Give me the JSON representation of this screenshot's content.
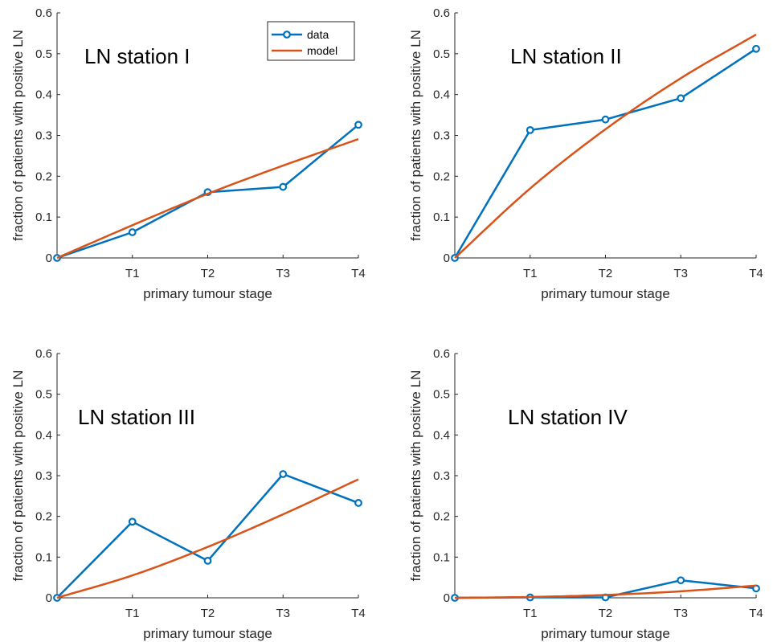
{
  "colors": {
    "data": "#0072BD",
    "model": "#D95319",
    "axis": "#262626"
  },
  "legend": {
    "data_label": "data",
    "model_label": "model",
    "placement": "top-right of first panel"
  },
  "chart_data": [
    {
      "type": "line",
      "title": "LN station I",
      "xlabel": "primary tumour stage",
      "ylabel": "fraction of patients with positive LN",
      "x_ticks": [
        "T1",
        "T2",
        "T3",
        "T4"
      ],
      "y_ticks": [
        "0",
        "0.1",
        "0.2",
        "0.3",
        "0.4",
        "0.5",
        "0.6"
      ],
      "xlim": [
        0,
        4
      ],
      "ylim": [
        0,
        0.6
      ],
      "series": [
        {
          "name": "data",
          "marker": "circle",
          "x": [
            0,
            1,
            2,
            3,
            4
          ],
          "y": [
            0,
            0.063,
            0.161,
            0.174,
            0.326
          ]
        },
        {
          "name": "model",
          "marker": "none",
          "x": [
            0,
            1,
            2,
            3,
            4
          ],
          "y": [
            0,
            0.08,
            0.157,
            0.226,
            0.291
          ]
        }
      ]
    },
    {
      "type": "line",
      "title": "LN station II",
      "xlabel": "primary tumour stage",
      "ylabel": "fraction of patients with positive LN",
      "x_ticks": [
        "T1",
        "T2",
        "T3",
        "T4"
      ],
      "y_ticks": [
        "0",
        "0.1",
        "0.2",
        "0.3",
        "0.4",
        "0.5",
        "0.6"
      ],
      "xlim": [
        0,
        4
      ],
      "ylim": [
        0,
        0.6
      ],
      "series": [
        {
          "name": "data",
          "marker": "circle",
          "x": [
            0,
            1,
            2,
            3,
            4
          ],
          "y": [
            0,
            0.313,
            0.339,
            0.391,
            0.512
          ]
        },
        {
          "name": "model",
          "marker": "none",
          "x": [
            0,
            1,
            2,
            3,
            4
          ],
          "y": [
            0,
            0.17,
            0.315,
            0.44,
            0.547
          ]
        }
      ]
    },
    {
      "type": "line",
      "title": "LN station III",
      "xlabel": "primary tumour stage",
      "ylabel": "fraction of patients with positive LN",
      "x_ticks": [
        "T1",
        "T2",
        "T3",
        "T4"
      ],
      "y_ticks": [
        "0",
        "0.1",
        "0.2",
        "0.3",
        "0.4",
        "0.5",
        "0.6"
      ],
      "xlim": [
        0,
        4
      ],
      "ylim": [
        0,
        0.6
      ],
      "series": [
        {
          "name": "data",
          "marker": "circle",
          "x": [
            0,
            1,
            2,
            3,
            4
          ],
          "y": [
            0,
            0.187,
            0.091,
            0.304,
            0.233
          ]
        },
        {
          "name": "model",
          "marker": "none",
          "x": [
            0,
            1,
            2,
            3,
            4
          ],
          "y": [
            0,
            0.055,
            0.125,
            0.205,
            0.291
          ]
        }
      ]
    },
    {
      "type": "line",
      "title": "LN station IV",
      "xlabel": "primary tumour stage",
      "ylabel": "fraction of patients with positive LN",
      "x_ticks": [
        "T1",
        "T2",
        "T3",
        "T4"
      ],
      "y_ticks": [
        "0",
        "0.1",
        "0.2",
        "0.3",
        "0.4",
        "0.5",
        "0.6"
      ],
      "xlim": [
        0,
        4
      ],
      "ylim": [
        0,
        0.6
      ],
      "series": [
        {
          "name": "data",
          "marker": "circle",
          "x": [
            0,
            1,
            2,
            3,
            4
          ],
          "y": [
            0,
            0.001,
            0.001,
            0.043,
            0.023
          ]
        },
        {
          "name": "model",
          "marker": "none",
          "x": [
            0,
            1,
            2,
            3,
            4
          ],
          "y": [
            0,
            0.002,
            0.007,
            0.016,
            0.03
          ]
        }
      ]
    }
  ]
}
